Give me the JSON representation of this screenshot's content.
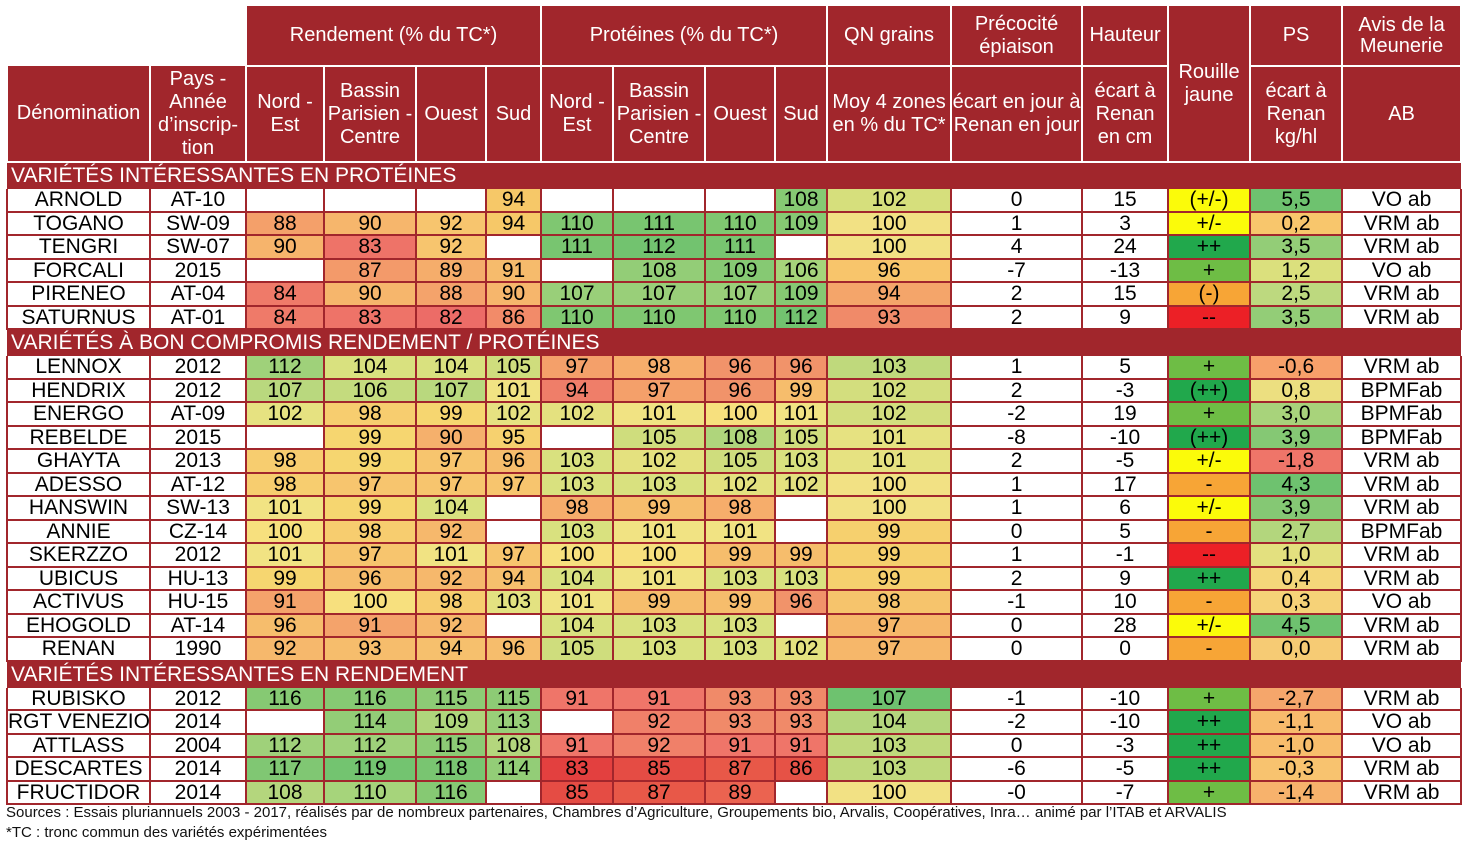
{
  "colors": {
    "header": "#a1262c",
    "text": "#000000"
  },
  "headers": {
    "groups": {
      "rendement": "Rendement (% du TC*)",
      "proteines": "Protéines (% du TC*)",
      "qn": "QN grains",
      "precocite": "Précocité épiaison",
      "hauteur": "Hauteur",
      "rouille": "Rouille jaune",
      "ps": "PS",
      "avis": "Avis de la Meunerie"
    },
    "sub": {
      "denomination": "Dénomination",
      "pays": "Pays - Année d’inscrip-tion",
      "r_ne": "Nord - Est",
      "r_bp": "Bassin Parisien -Centre",
      "r_ou": "Ouest",
      "r_su": "Sud",
      "p_ne": "Nord - Est",
      "p_bp": "Bassin Parisien -Centre",
      "p_ou": "Ouest",
      "p_su": "Sud",
      "qn": "Moy 4 zones en % du TC*",
      "precocite": "écart en jour à Renan en jour",
      "hauteur": "écart à Renan en cm",
      "ps": "écart à Renan kg/hl",
      "avis": "AB"
    }
  },
  "sections": [
    {
      "title": "VARIÉTÉS INTÉRESSANTES EN PROTÉINES",
      "rows": [
        {
          "cells": [
            "ARNOLD",
            "AT-10",
            "",
            "",
            "",
            "94",
            "",
            "",
            "",
            "108",
            "102",
            "0",
            "15",
            "(+/-)",
            "5,5",
            "VO ab"
          ],
          "colors": [
            "#fff",
            "#fff",
            "#fff",
            "#fff",
            "#fff",
            "#f6c868",
            "#fff",
            "#fff",
            "#fff",
            "#86c973",
            "#d6df7c",
            "#fff",
            "#fff",
            "#fbfb0a",
            "#6ec26f",
            "#fff"
          ]
        },
        {
          "cells": [
            "TOGANO",
            "SW-09",
            "88",
            "90",
            "92",
            "94",
            "110",
            "111",
            "110",
            "109",
            "100",
            "1",
            "3",
            "+/-",
            "0,2",
            "VRM ab"
          ],
          "colors": [
            "#fff",
            "#fff",
            "#f4a06a",
            "#f6b66c",
            "#f7c56e",
            "#f6c868",
            "#7fc771",
            "#78c570",
            "#7fc771",
            "#86c973",
            "#f2e184",
            "#fff",
            "#fff",
            "#fbfb0a",
            "#f8c66c",
            "#fff"
          ]
        },
        {
          "cells": [
            "TENGRI",
            "SW-07",
            "90",
            "83",
            "92",
            "",
            "111",
            "112",
            "111",
            "",
            "100",
            "4",
            "24",
            "++",
            "3,5",
            "VRM ab"
          ],
          "colors": [
            "#fff",
            "#fff",
            "#f6b46c",
            "#ee7368",
            "#f7c56e",
            "#fff",
            "#78c570",
            "#72c36f",
            "#78c570",
            "#fff",
            "#f2e184",
            "#fff",
            "#fff",
            "#21a84c",
            "#93cd77",
            "#fff"
          ]
        },
        {
          "cells": [
            "FORCALI",
            "2015",
            "",
            "87",
            "89",
            "91",
            "",
            "108",
            "109",
            "106",
            "96",
            "-7",
            "-13",
            "+",
            "1,2",
            "VO ab"
          ],
          "colors": [
            "#fff",
            "#fff",
            "#fff",
            "#f39a6a",
            "#f5ad6b",
            "#f6bb6c",
            "#fff",
            "#93cd77",
            "#86c973",
            "#a6d47b",
            "#f8c56b",
            "#fff",
            "#fff",
            "#6ebd45",
            "#dbe07d",
            "#fff"
          ]
        },
        {
          "cells": [
            "PIRENEO",
            "AT-04",
            "84",
            "90",
            "88",
            "90",
            "107",
            "107",
            "107",
            "109",
            "94",
            "2",
            "15",
            "(-)",
            "2,5",
            "VRM ab"
          ],
          "colors": [
            "#fff",
            "#fff",
            "#ef7a69",
            "#f6b66c",
            "#f4a36b",
            "#f6b66c",
            "#99cf79",
            "#99cf79",
            "#99cf79",
            "#86c973",
            "#f4a56a",
            "#fff",
            "#fff",
            "#f7a536",
            "#bdd97f",
            "#fff"
          ]
        },
        {
          "cells": [
            "SATURNUS",
            "AT-01",
            "84",
            "83",
            "82",
            "86",
            "110",
            "110",
            "110",
            "112",
            "93",
            "2",
            "9",
            "--",
            "3,5",
            "VRM ab"
          ],
          "colors": [
            "#fff",
            "#fff",
            "#ef7a69",
            "#ee7368",
            "#ec6c67",
            "#f28b69",
            "#7fc771",
            "#7fc771",
            "#7fc771",
            "#72c36f",
            "#f08a69",
            "#fff",
            "#fff",
            "#ec2026",
            "#93cd77",
            "#fff"
          ]
        }
      ]
    },
    {
      "title": "VARIÉTÉS À BON COMPROMIS RENDEMENT / PROTÉINES",
      "rows": [
        {
          "cells": [
            "LENNOX",
            "2012",
            "112",
            "104",
            "104",
            "105",
            "97",
            "98",
            "96",
            "96",
            "103",
            "1",
            "5",
            "+",
            "-0,6",
            "VRM ab"
          ],
          "colors": [
            "#fff",
            "#fff",
            "#9fd17a",
            "#d9e17f",
            "#d9e17f",
            "#cfdd7d",
            "#f4a06a",
            "#f6ad6b",
            "#f1936a",
            "#f1936a",
            "#bfd97c",
            "#fff",
            "#fff",
            "#6ebd45",
            "#f7a06a",
            "#fff"
          ]
        },
        {
          "cells": [
            "HENDRIX",
            "2012",
            "107",
            "106",
            "107",
            "101",
            "94",
            "97",
            "96",
            "99",
            "102",
            "2",
            "-3",
            "(++)",
            "0,8",
            "BPMFab"
          ],
          "colors": [
            "#fff",
            "#fff",
            "#b9d87e",
            "#c4db7e",
            "#b9d87e",
            "#f1e383",
            "#ef7e69",
            "#f4a06a",
            "#f1936a",
            "#f6bd6c",
            "#d3de7e",
            "#fff",
            "#fff",
            "#21a84c",
            "#ecdf80",
            "#fff"
          ]
        },
        {
          "cells": [
            "ENERGO",
            "AT-09",
            "102",
            "98",
            "99",
            "102",
            "102",
            "101",
            "100",
            "101",
            "102",
            "-2",
            "19",
            "+",
            "3,0",
            "BPMFab"
          ],
          "colors": [
            "#fff",
            "#fff",
            "#e6e281",
            "#f7cd6f",
            "#f6d670",
            "#e6e281",
            "#e4e17f",
            "#f1e383",
            "#f7e07e",
            "#f1e383",
            "#d3de7e",
            "#fff",
            "#fff",
            "#6ebd45",
            "#a8d37b",
            "#fff"
          ]
        },
        {
          "cells": [
            "REBELDE",
            "2015",
            "",
            "99",
            "90",
            "95",
            "",
            "105",
            "108",
            "105",
            "101",
            "-8",
            "-10",
            "(++)",
            "3,9",
            "BPMFab"
          ],
          "colors": [
            "#fff",
            "#fff",
            "#fff",
            "#f6d670",
            "#f5b06c",
            "#f6d16f",
            "#fff",
            "#cfdd7d",
            "#afd57c",
            "#cfdd7d",
            "#e6e281",
            "#fff",
            "#fff",
            "#21a84c",
            "#85c874",
            "#fff"
          ]
        },
        {
          "cells": [
            "GHAYTA",
            "2013",
            "98",
            "99",
            "97",
            "96",
            "103",
            "102",
            "105",
            "103",
            "101",
            "2",
            "-5",
            "+/-",
            "-1,8",
            "VRM ab"
          ],
          "colors": [
            "#fff",
            "#fff",
            "#f7cd6f",
            "#f6d670",
            "#f7c56e",
            "#f6bd6c",
            "#d9e17f",
            "#e4e17f",
            "#cfdd7d",
            "#d9e17f",
            "#e6e281",
            "#fff",
            "#fff",
            "#fbfb0a",
            "#ef7569",
            "#fff"
          ]
        },
        {
          "cells": [
            "ADESSO",
            "AT-12",
            "98",
            "97",
            "97",
            "97",
            "103",
            "103",
            "102",
            "102",
            "100",
            "1",
            "17",
            "-",
            "4,3",
            "VRM ab"
          ],
          "colors": [
            "#fff",
            "#fff",
            "#f7cd6f",
            "#f7c56e",
            "#f7c56e",
            "#f7c56e",
            "#d9e17f",
            "#d9e17f",
            "#e4e17f",
            "#e4e17f",
            "#f2e184",
            "#fff",
            "#fff",
            "#f7a536",
            "#6ec26f",
            "#fff"
          ]
        },
        {
          "cells": [
            "HANSWIN",
            "SW-13",
            "101",
            "99",
            "104",
            "",
            "98",
            "99",
            "98",
            "",
            "100",
            "1",
            "6",
            "+/-",
            "3,9",
            "VRM ab"
          ],
          "colors": [
            "#fff",
            "#fff",
            "#f1e383",
            "#f6d670",
            "#d9e17f",
            "#fff",
            "#f6ad6b",
            "#f6bd6c",
            "#f6ad6b",
            "#fff",
            "#f2e184",
            "#fff",
            "#fff",
            "#fbfb0a",
            "#85c874",
            "#fff"
          ]
        },
        {
          "cells": [
            "ANNIE",
            "CZ-14",
            "100",
            "98",
            "92",
            "",
            "103",
            "101",
            "101",
            "",
            "99",
            "0",
            "5",
            "-",
            "2,7",
            "BPMFab"
          ],
          "colors": [
            "#fff",
            "#fff",
            "#f7e07e",
            "#f7cd6f",
            "#f6b86c",
            "#fff",
            "#d9e17f",
            "#f1e383",
            "#f1e383",
            "#fff",
            "#f6d06e",
            "#fff",
            "#fff",
            "#f7a536",
            "#b3d67d",
            "#fff"
          ]
        },
        {
          "cells": [
            "SKERZZO",
            "2012",
            "101",
            "97",
            "101",
            "97",
            "100",
            "100",
            "99",
            "99",
            "99",
            "1",
            "-1",
            "--",
            "1,0",
            "VRM ab"
          ],
          "colors": [
            "#fff",
            "#fff",
            "#f1e383",
            "#f7c56e",
            "#f1e383",
            "#f7c56e",
            "#f7e07e",
            "#f7e07e",
            "#f6bd6c",
            "#f6bd6c",
            "#f6d06e",
            "#fff",
            "#fff",
            "#ec2026",
            "#e3e07f",
            "#fff"
          ]
        },
        {
          "cells": [
            "UBICUS",
            "HU-13",
            "99",
            "96",
            "92",
            "94",
            "104",
            "101",
            "103",
            "103",
            "99",
            "2",
            "9",
            "++",
            "0,4",
            "VRM ab"
          ],
          "colors": [
            "#fff",
            "#fff",
            "#f6d670",
            "#f6bd6c",
            "#f6b86c",
            "#f6c06d",
            "#d9e17f",
            "#f1e383",
            "#d9e17f",
            "#d9e17f",
            "#f6d06e",
            "#fff",
            "#fff",
            "#21a84c",
            "#f4d77a",
            "#fff"
          ]
        },
        {
          "cells": [
            "ACTIVUS",
            "HU-15",
            "91",
            "100",
            "98",
            "103",
            "101",
            "99",
            "99",
            "96",
            "98",
            "-1",
            "10",
            "-",
            "0,3",
            "VO ab"
          ],
          "colors": [
            "#fff",
            "#fff",
            "#f4a36b",
            "#f7e07e",
            "#f7cd6f",
            "#e3e281",
            "#f1e383",
            "#f6bd6c",
            "#f6bd6c",
            "#f1936a",
            "#f6c46c",
            "#fff",
            "#fff",
            "#f7a536",
            "#f6d278",
            "#fff"
          ]
        },
        {
          "cells": [
            "EHOGOLD",
            "AT-14",
            "96",
            "91",
            "92",
            "",
            "104",
            "103",
            "103",
            "",
            "97",
            "0",
            "28",
            "+/-",
            "4,5",
            "VRM ab"
          ],
          "colors": [
            "#fff",
            "#fff",
            "#f6bd6c",
            "#f4a36b",
            "#f6b86c",
            "#fff",
            "#d9e17f",
            "#d9e17f",
            "#d9e17f",
            "#fff",
            "#f6b76a",
            "#fff",
            "#fff",
            "#fbfb0a",
            "#6ec26f",
            "#fff"
          ]
        },
        {
          "cells": [
            "RENAN",
            "1990",
            "92",
            "93",
            "94",
            "96",
            "105",
            "103",
            "103",
            "102",
            "97",
            "0",
            "0",
            "-",
            "0,0",
            "VRM ab"
          ],
          "colors": [
            "#fff",
            "#fff",
            "#f6b86c",
            "#f6bd6c",
            "#f6c06d",
            "#f6bd6c",
            "#cfdd7d",
            "#d9e17f",
            "#d9e17f",
            "#e4e17f",
            "#f6b76a",
            "#fff",
            "#fff",
            "#f7a536",
            "#f6cb74",
            "#fff"
          ]
        }
      ]
    },
    {
      "title": "VARIÉTÉS INTÉRESSANTES EN RENDEMENT",
      "rows": [
        {
          "cells": [
            "RUBISKO",
            "2012",
            "116",
            "116",
            "115",
            "115",
            "91",
            "91",
            "93",
            "93",
            "107",
            "-1",
            "-10",
            "+",
            "-2,7",
            "VRM ab"
          ],
          "colors": [
            "#fff",
            "#fff",
            "#86c973",
            "#86c973",
            "#8dcb75",
            "#8dcb75",
            "#ef7569",
            "#ef7569",
            "#f08a69",
            "#f08a69",
            "#6ec26f",
            "#fff",
            "#fff",
            "#6ebd45",
            "#f5a66b",
            "#fff"
          ]
        },
        {
          "cells": [
            "RGT VENEZIO",
            "2014",
            "",
            "114",
            "109",
            "113",
            "",
            "92",
            "93",
            "93",
            "104",
            "-2",
            "-10",
            "++",
            "-1,1",
            "VO ab"
          ],
          "colors": [
            "#fff",
            "#fff",
            "#fff",
            "#93cd77",
            "#afd57c",
            "#99cf79",
            "#fff",
            "#f08069",
            "#f08a69",
            "#f08a69",
            "#b4d67d",
            "#fff",
            "#fff",
            "#21a84c",
            "#f8bb6c",
            "#fff"
          ]
        },
        {
          "cells": [
            "ATTLASS",
            "2004",
            "112",
            "112",
            "115",
            "108",
            "91",
            "92",
            "91",
            "91",
            "103",
            "0",
            "-3",
            "++",
            "-1,0",
            "VO ab"
          ],
          "colors": [
            "#fff",
            "#fff",
            "#9fd17a",
            "#9fd17a",
            "#8dcb75",
            "#b4d67d",
            "#ef7569",
            "#f08069",
            "#ef7569",
            "#ef7569",
            "#bfd97c",
            "#fff",
            "#fff",
            "#21a84c",
            "#f8bd6c",
            "#fff"
          ]
        },
        {
          "cells": [
            "DESCARTES",
            "2014",
            "117",
            "119",
            "118",
            "114",
            "83",
            "85",
            "87",
            "86",
            "103",
            "-6",
            "-5",
            "++",
            "-0,3",
            "VRM ab"
          ],
          "colors": [
            "#fff",
            "#fff",
            "#80c773",
            "#73c470",
            "#79c571",
            "#93cd77",
            "#e3403f",
            "#e54c44",
            "#e85848",
            "#e65246",
            "#bfd97c",
            "#fff",
            "#fff",
            "#21a84c",
            "#f8c36f",
            "#fff"
          ]
        },
        {
          "cells": [
            "FRUCTIDOR",
            "2014",
            "108",
            "110",
            "116",
            "",
            "85",
            "87",
            "89",
            "",
            "100",
            "-0",
            "-7",
            "+",
            "-1,4",
            "VRM ab"
          ],
          "colors": [
            "#fff",
            "#fff",
            "#b4d67d",
            "#a6d47b",
            "#86c973",
            "#fff",
            "#e54c44",
            "#e85848",
            "#eb6350",
            "#fff",
            "#f2e184",
            "#fff",
            "#fff",
            "#6ebd45",
            "#f7b26c",
            "#fff"
          ]
        }
      ]
    }
  ],
  "footer": {
    "sources": "Sources : Essais pluriannuels 2003 - 2017, réalisés par de nombreux partenaires, Chambres d’Agriculture, Groupements bio, Arvalis, Coopératives, Inra…  animé par l’ITAB et ARVALIS",
    "tc_note": "*TC : tronc commun des variétés expérimentées"
  }
}
